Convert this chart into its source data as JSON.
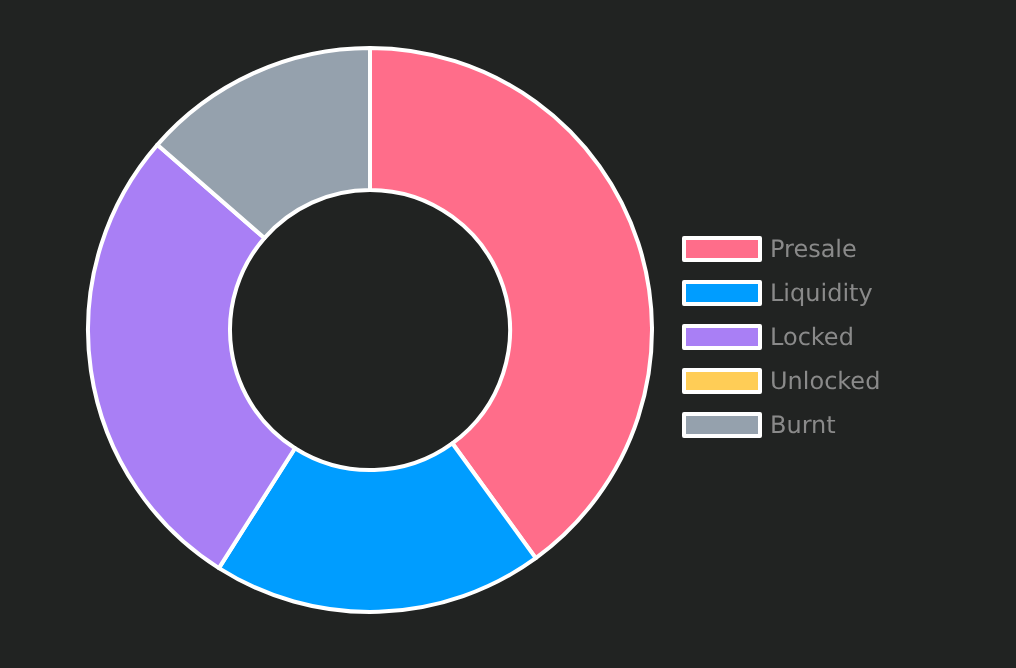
{
  "chart_data": {
    "type": "donut",
    "categories": [
      "Presale",
      "Liquidity",
      "Locked",
      "Unlocked",
      "Burnt"
    ],
    "values": [
      40,
      19,
      27.4,
      0,
      13.6
    ],
    "colors": [
      "#ff6d8a",
      "#009dff",
      "#a97ff5",
      "#ffcd56",
      "#95a1ad"
    ],
    "legend": "right"
  }
}
